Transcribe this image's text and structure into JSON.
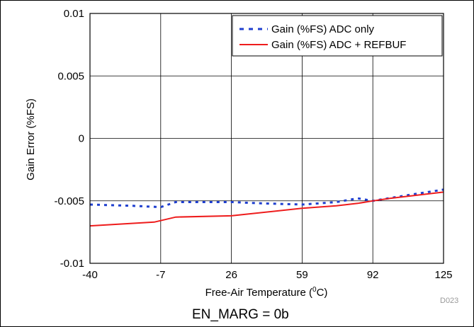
{
  "chart_data": {
    "type": "line",
    "xlabel_main": "Free-Air Temperature (",
    "xlabel_sup": "0",
    "xlabel_end": "C)",
    "ylabel": "Gain Error (%FS)",
    "x_ticks": [
      "-40",
      "-7",
      "26",
      "59",
      "92",
      "125"
    ],
    "x_tick_values": [
      -40,
      -7,
      26,
      59,
      92,
      125
    ],
    "y_ticks": [
      "0.01",
      "0.005",
      "0",
      "-0.005",
      "-0.01"
    ],
    "y_tick_values": [
      0.01,
      0.005,
      0,
      -0.005,
      -0.01
    ],
    "xlim": [
      -40,
      125
    ],
    "ylim": [
      -0.01,
      0.01
    ],
    "grid": true,
    "legend_position": "top-right",
    "series": [
      {
        "name": "Gain (%FS) ADC only",
        "color": "#1f3fcf",
        "style": "dotted",
        "x": [
          -40,
          -20,
          -7,
          0,
          26,
          40,
          59,
          75,
          85,
          92,
          110,
          125
        ],
        "y": [
          -0.0053,
          -0.0054,
          -0.0055,
          -0.0051,
          -0.0051,
          -0.0052,
          -0.0053,
          -0.0051,
          -0.0048,
          -0.005,
          -0.0045,
          -0.0041
        ]
      },
      {
        "name": "Gain (%FS) ADC + REFBUF",
        "color": "#ee1c1c",
        "style": "solid",
        "x": [
          -40,
          -10,
          0,
          26,
          59,
          75,
          85,
          92,
          100,
          125
        ],
        "y": [
          -0.007,
          -0.0067,
          -0.0063,
          -0.0062,
          -0.0056,
          -0.0054,
          -0.0052,
          -0.005,
          -0.0048,
          -0.0043
        ]
      }
    ]
  },
  "figure_code": "D023",
  "caption": "EN_MARG = 0b"
}
